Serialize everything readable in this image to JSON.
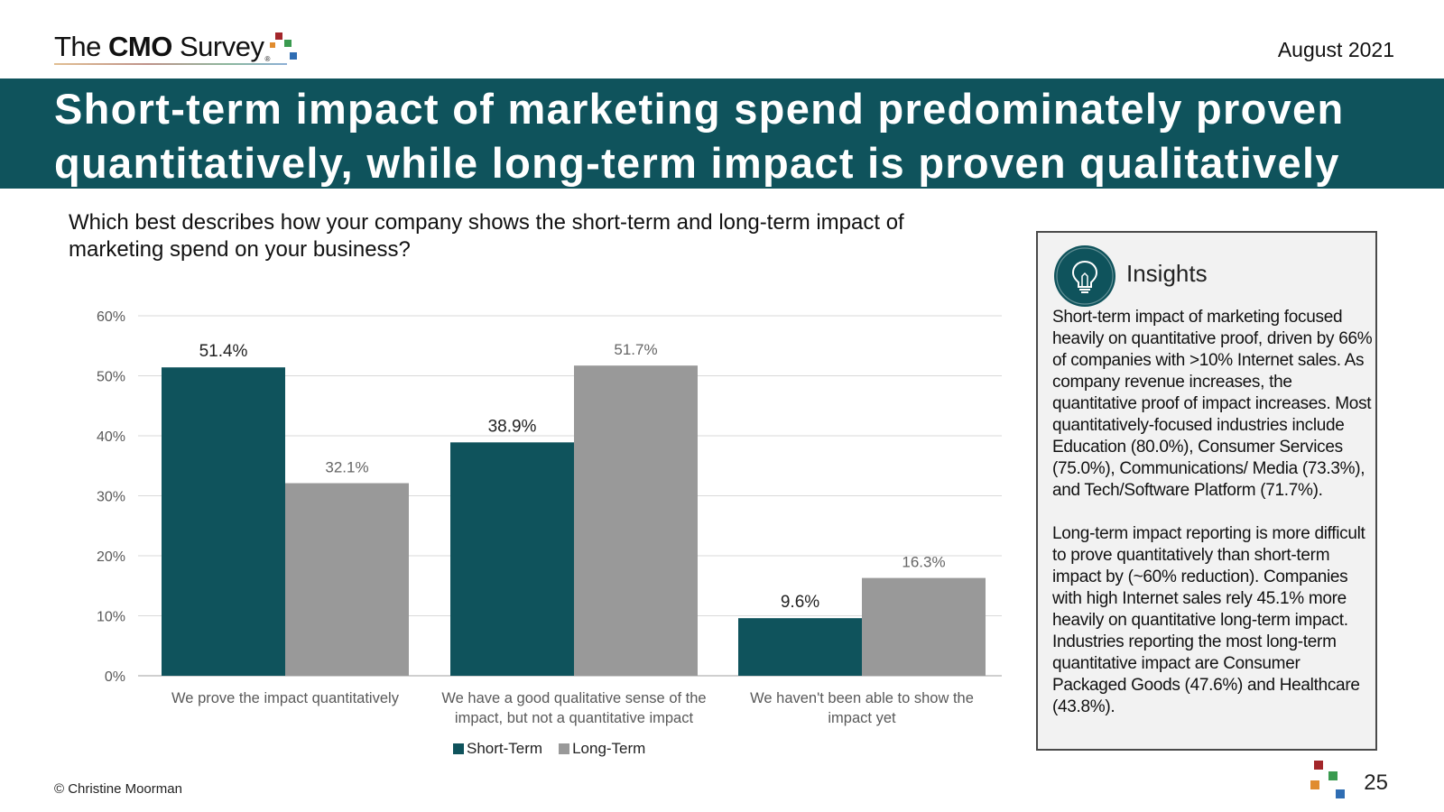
{
  "header": {
    "logo_part1": "The ",
    "logo_part2": "CMO",
    "logo_part3": " Survey",
    "logo_reg": "®",
    "date": "August 2021"
  },
  "title": "Short-term impact of marketing spend predominately proven quantitatively, while long-term impact is proven qualitatively",
  "question": "Which best describes how your company shows the short-term and long-term impact of marketing spend on your business?",
  "chart_data": {
    "type": "bar",
    "title": "",
    "xlabel": "",
    "ylabel": "",
    "ylim": [
      0,
      60
    ],
    "yticks": [
      0,
      10,
      20,
      30,
      40,
      50,
      60
    ],
    "ytick_labels": [
      "0%",
      "10%",
      "20%",
      "30%",
      "40%",
      "50%",
      "60%"
    ],
    "grid": true,
    "legend_position": "bottom",
    "categories": [
      [
        "We prove the impact quantitatively"
      ],
      [
        "We have a good qualitative sense of the",
        "impact, but not a quantitative impact"
      ],
      [
        "We haven't been able to show the",
        "impact yet"
      ]
    ],
    "series": [
      {
        "name": "Short-Term",
        "color": "#0f535c",
        "values": [
          51.4,
          38.9,
          9.6
        ],
        "labels": [
          "51.4%",
          "38.9%",
          "9.6%"
        ]
      },
      {
        "name": "Long-Term",
        "color": "#999999",
        "values": [
          32.1,
          51.7,
          16.3
        ],
        "labels": [
          "32.1%",
          "51.7%",
          "16.3%"
        ]
      }
    ]
  },
  "insights": {
    "title": "Insights",
    "icon": "lightbulb-icon",
    "paragraph1": "Short-term impact of marketing focused heavily on quantitative proof, driven by 66% of companies with >10% Internet sales. As company revenue increases, the quantitative proof of impact increases. Most quantitatively-focused industries include Education (80.0%), Consumer Services (75.0%), Communications/ Media (73.3%), and Tech/Software Platform (71.7%).",
    "paragraph2": "Long-term impact reporting is more difficult to prove quantitatively than short-term impact by (~60% reduction). Companies with high Internet sales rely 45.1% more heavily on quantitative long-term impact. Industries reporting the most long-term quantitative impact are Consumer Packaged Goods (47.6%) and Healthcare (43.8%)."
  },
  "footer": {
    "copyright": "© Christine Moorman",
    "page_number": "25"
  },
  "colors": {
    "brand_teal": "#0f535c",
    "long_term_gray": "#999999",
    "square_red": "#a3262a",
    "square_orange": "#e08c2e",
    "square_green": "#3a9a4f",
    "square_blue": "#2f6db3"
  }
}
